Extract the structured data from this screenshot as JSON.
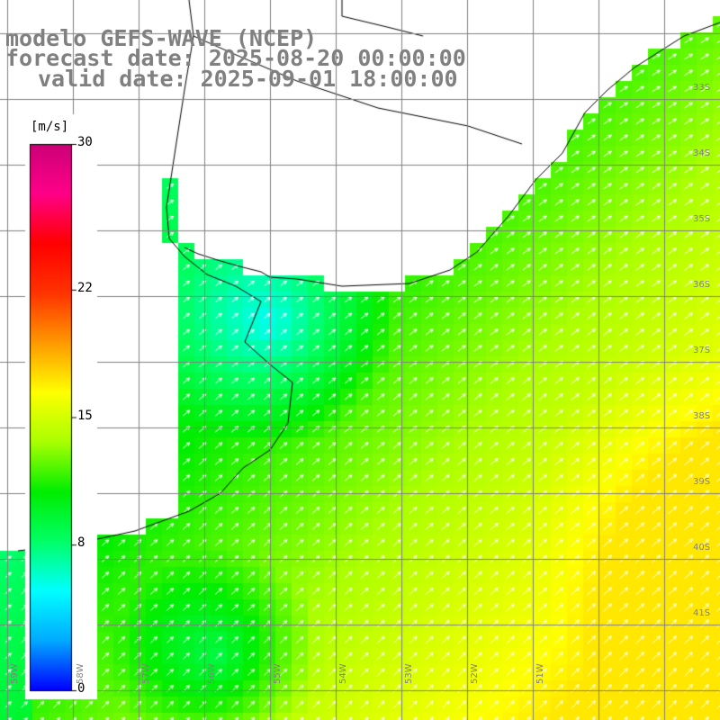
{
  "header": {
    "line1": "modelo GEFS-WAVE (NCEP)",
    "line2": "forecast date: 2025-08-20 00:00:00",
    "line3": "valid date: 2025-09-01 18:00:00"
  },
  "colorbar": {
    "unit": "[m/s]",
    "ticks": [
      "30",
      "22",
      "15",
      "8",
      "0"
    ],
    "tick_values": [
      30,
      22,
      15,
      8,
      0
    ],
    "min": 0,
    "max": 30,
    "colors": [
      "#0000ff",
      "#00aaff",
      "#00ffff",
      "#00ff66",
      "#00ee00",
      "#aaff00",
      "#ffff00",
      "#ff9900",
      "#ff3300",
      "#ff0000",
      "#ff0088",
      "#cc0077"
    ]
  },
  "map": {
    "latitude_labels": [
      "33S",
      "34S",
      "35S",
      "36S",
      "37S",
      "38S",
      "39S",
      "40S",
      "41S"
    ],
    "longitude_labels": [
      "59W",
      "58W",
      "57W",
      "56W",
      "55W",
      "54W",
      "53W",
      "52W",
      "51W"
    ],
    "colors": {
      "land": "#ffffff",
      "coast": "#000000",
      "grid": "#808080",
      "arrows": "#ffffff"
    }
  }
}
